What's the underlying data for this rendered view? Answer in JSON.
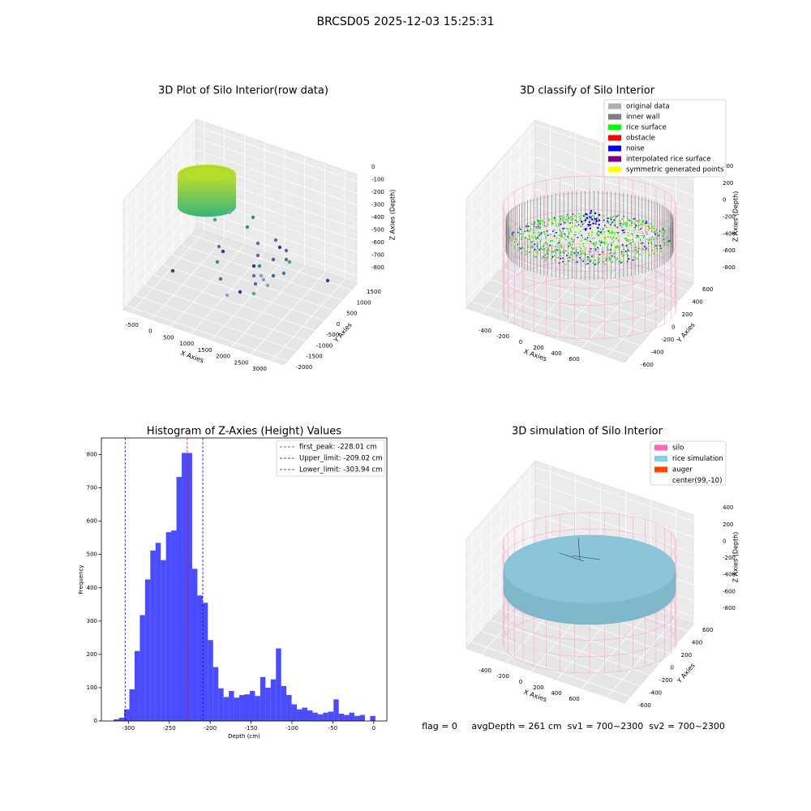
{
  "title": "BRCSD05 2025-12-03 15:25:31",
  "footer": "flag = 0     avgDepth = 261 cm  sv1 = 700~2300  sv2 = 700~2300",
  "chart_data": [
    {
      "type": "scatter3d",
      "title": "3D Plot of Silo Interior(row data)",
      "xlabel": "X Axies",
      "ylabel": "Y Axies",
      "zlabel": "Z Axies (Depth)",
      "xlim": [
        -700,
        3300
      ],
      "ylim": [
        -2200,
        1800
      ],
      "zlim": [
        -870,
        60
      ],
      "xticks": [
        -500,
        0,
        500,
        1000,
        1500,
        2000,
        2500,
        3000
      ],
      "yticks": [
        -2000,
        -1500,
        -1000,
        -500,
        0,
        500,
        1000,
        1500
      ],
      "zticks": [
        0,
        -100,
        -200,
        -300,
        -400,
        -500,
        -600,
        -700,
        -800
      ]
    },
    {
      "type": "scatter3d",
      "title": "3D classify of Silo Interior",
      "xlabel": "X Axies",
      "ylabel": "Y Axies",
      "zlabel": "Z Axies (Depth)",
      "xlim": [
        -520,
        740
      ],
      "ylim": [
        -720,
        720
      ],
      "zlim": [
        -900,
        460
      ],
      "xticks": [
        -400,
        -200,
        0,
        200,
        400,
        600
      ],
      "yticks": [
        -600,
        -400,
        -200,
        0,
        200,
        400,
        600
      ],
      "zticks": [
        400,
        200,
        0,
        -200,
        -400,
        -600,
        -800
      ],
      "legend": [
        {
          "name": "original data",
          "color": "#b0b0b0"
        },
        {
          "name": "inner wall",
          "color": "#808080"
        },
        {
          "name": "rice surface",
          "color": "#00ff00"
        },
        {
          "name": "obstacle",
          "color": "#ff0000"
        },
        {
          "name": "noise",
          "color": "#0000ff"
        },
        {
          "name": "interpolated rice surface",
          "color": "#800080"
        },
        {
          "name": "symmetric generated points",
          "color": "#ffff00"
        }
      ]
    },
    {
      "type": "histogram",
      "title": "Histogram of Z-Axies (Height) Values",
      "xlabel": "Depth (cm)",
      "ylabel": "Frequency",
      "color": "#0000ff",
      "bins": [
        -318,
        -311.6,
        -305.2,
        -298.8,
        -292.4,
        -286,
        -279.6,
        -273.2,
        -266.8,
        -260.4,
        -254,
        -247.6,
        -241.2,
        -234.8,
        -228.4,
        -222,
        -215.6,
        -209.2,
        -202.8,
        -196.4,
        -190,
        -183.6,
        -177.2,
        -170.8,
        -164.4,
        -158,
        -151.6,
        -145.2,
        -138.8,
        -132.4,
        -126,
        -119.6,
        -113.2,
        -106.8,
        -100.4,
        -94,
        -87.6,
        -81.2,
        -74.8,
        -68.4,
        -62,
        -55.6,
        -49.2,
        -42.8,
        -36.4,
        -30,
        -23.6,
        -17.2,
        -10.8,
        -4.4,
        2
      ],
      "values": [
        5,
        10,
        35,
        95,
        210,
        318,
        425,
        512,
        535,
        483,
        567,
        572,
        733,
        805,
        805,
        457,
        377,
        355,
        243,
        162,
        98,
        72,
        90,
        70,
        78,
        80,
        90,
        75,
        132,
        100,
        125,
        218,
        105,
        78,
        50,
        35,
        40,
        32,
        25,
        20,
        25,
        28,
        65,
        22,
        18,
        25,
        15,
        18,
        0,
        15
      ],
      "xlim": [
        -333,
        16
      ],
      "ylim": [
        0,
        850
      ],
      "xticks": [
        -300,
        -250,
        -200,
        -150,
        -100,
        -50,
        0
      ],
      "yticks": [
        0,
        100,
        200,
        300,
        400,
        500,
        600,
        700,
        800
      ],
      "lines": [
        {
          "name": "first_peak: -228.01 cm",
          "value": -228.01,
          "color": "#ff0000"
        },
        {
          "name": "Upper_limit: -209.02 cm",
          "value": -209.02,
          "color": "#0000ff"
        },
        {
          "name": "Lower_limit: -303.94 cm",
          "value": -303.94,
          "color": "#0000ff"
        }
      ]
    },
    {
      "type": "surface3d",
      "title": "3D simulation of Silo Interior",
      "xlabel": "X Axies",
      "ylabel": "Y Axies",
      "zlabel": "Z Axies (Depth)",
      "xlim": [
        -520,
        740
      ],
      "ylim": [
        -720,
        720
      ],
      "zlim": [
        -900,
        480
      ],
      "xticks": [
        -400,
        -200,
        0,
        200,
        400,
        600
      ],
      "yticks": [
        -600,
        -400,
        -200,
        0,
        200,
        400,
        600
      ],
      "zticks": [
        400,
        200,
        0,
        -200,
        -400,
        -600,
        -800
      ],
      "legend": [
        {
          "name": "silo",
          "color": "#ff69b4"
        },
        {
          "name": "rice simulation",
          "color": "#87ceeb"
        },
        {
          "name": "auger",
          "color": "#ff4500"
        },
        {
          "name": "center(99,-10)"
        }
      ]
    }
  ]
}
